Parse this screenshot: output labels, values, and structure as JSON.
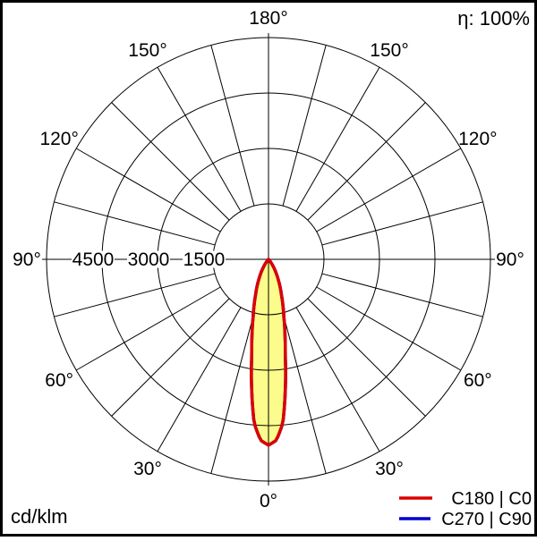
{
  "chart_data": {
    "type": "polar-intensity",
    "units": "cd/klm",
    "efficiency": "η: 100%",
    "angle_grid_step_deg": 15,
    "angle_labels": [
      {
        "deg": 0,
        "text": "0°"
      },
      {
        "deg": 30,
        "text": "30°"
      },
      {
        "deg": 60,
        "text": "60°"
      },
      {
        "deg": 90,
        "text": "90°"
      },
      {
        "deg": 120,
        "text": "120°"
      },
      {
        "deg": 150,
        "text": "150°"
      },
      {
        "deg": 180,
        "text": "180°"
      }
    ],
    "radial_axis": {
      "max": 6000,
      "ring_step": 1500,
      "ring_labels": [
        {
          "value": 4500,
          "text": "4500"
        },
        {
          "value": 3000,
          "text": "3000"
        },
        {
          "value": 1500,
          "text": "1500"
        }
      ]
    },
    "series": [
      {
        "name": "C180 | C0",
        "color": "#dd0000",
        "fill": "#fcfc8c",
        "symmetric_mirror": true,
        "angles_deg": [
          0,
          2.5,
          5,
          7.5,
          10,
          12.5,
          15,
          17.5,
          20,
          22.5,
          25,
          27.5,
          30,
          32.5,
          35,
          37.5,
          40,
          42.5,
          45
        ],
        "values_cd_per_klm": [
          5030,
          4900,
          4450,
          3500,
          2600,
          2050,
          1600,
          1290,
          1020,
          830,
          650,
          500,
          380,
          270,
          180,
          110,
          60,
          25,
          0
        ]
      },
      {
        "name": "C270 | C90",
        "color": "#0000cc",
        "fill": null,
        "symmetric_mirror": true,
        "angles_deg": [
          0,
          2.5,
          5,
          7.5,
          10,
          12.5,
          15,
          17.5,
          20,
          22.5,
          25,
          27.5,
          30,
          32.5,
          35,
          37.5,
          40,
          42.5,
          45
        ],
        "values_cd_per_klm": [
          5030,
          4900,
          4450,
          3500,
          2600,
          2050,
          1600,
          1290,
          1020,
          830,
          650,
          500,
          380,
          270,
          180,
          110,
          60,
          25,
          0
        ]
      }
    ]
  }
}
